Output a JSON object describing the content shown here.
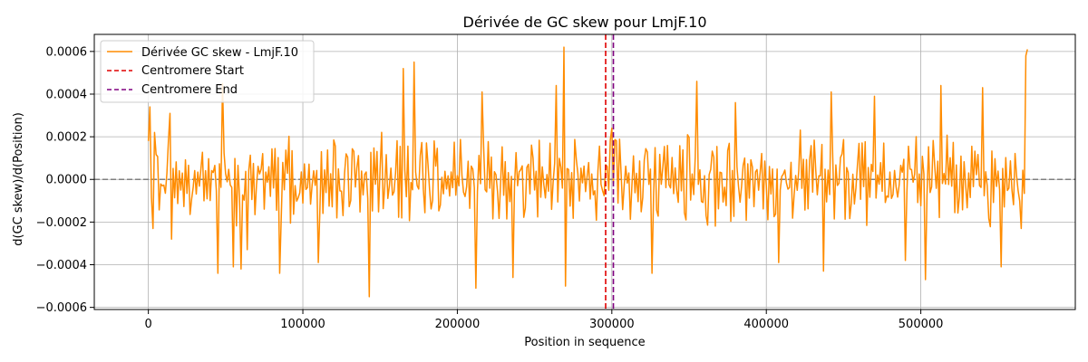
{
  "chart_data": {
    "type": "line",
    "title": "Dérivée de GC skew pour LmjF.10",
    "xlabel": "Position in sequence",
    "ylabel": "d(GC skew)/d(Position)",
    "xlim": [
      -35000,
      600000
    ],
    "ylim": [
      -0.00061,
      0.00068
    ],
    "x_ticks": [
      0,
      100000,
      200000,
      300000,
      400000,
      500000
    ],
    "x_tick_labels": [
      "0",
      "100000",
      "200000",
      "300000",
      "400000",
      "500000"
    ],
    "y_ticks": [
      -0.0006,
      -0.0004,
      -0.0002,
      0.0,
      0.0002,
      0.0004,
      0.0006
    ],
    "y_tick_labels": [
      "−0.0006",
      "−0.0004",
      "−0.0002",
      "0.0000",
      "0.0002",
      "0.0004",
      "0.0006"
    ],
    "grid": true,
    "legend": "upper-left",
    "series": [
      {
        "name": "Dérivée GC skew - LmjF.10",
        "color": "#ff8c00",
        "x_start": 0,
        "x_step": 1000,
        "peaks": [
          {
            "x": 0,
            "y": 0.00018
          },
          {
            "x": 1000,
            "y": 0.00034
          },
          {
            "x": 3000,
            "y": -0.00023
          },
          {
            "x": 4000,
            "y": 0.00022
          },
          {
            "x": 14000,
            "y": 0.00031
          },
          {
            "x": 15000,
            "y": -0.00028
          },
          {
            "x": 45000,
            "y": -0.00044
          },
          {
            "x": 48000,
            "y": 0.00045
          },
          {
            "x": 55000,
            "y": -0.00041
          },
          {
            "x": 60000,
            "y": -0.00042
          },
          {
            "x": 85000,
            "y": -0.00044
          },
          {
            "x": 110000,
            "y": -0.00039
          },
          {
            "x": 143000,
            "y": -0.00055
          },
          {
            "x": 165000,
            "y": 0.00052
          },
          {
            "x": 172000,
            "y": 0.00055
          },
          {
            "x": 212000,
            "y": -0.00051
          },
          {
            "x": 216000,
            "y": 0.00041
          },
          {
            "x": 236000,
            "y": -0.00046
          },
          {
            "x": 264000,
            "y": 0.00044
          },
          {
            "x": 269000,
            "y": 0.00062
          },
          {
            "x": 270000,
            "y": -0.0005
          },
          {
            "x": 300000,
            "y": 0.00024
          },
          {
            "x": 326000,
            "y": -0.00044
          },
          {
            "x": 355000,
            "y": 0.00046
          },
          {
            "x": 380000,
            "y": 0.00036
          },
          {
            "x": 408000,
            "y": -0.00039
          },
          {
            "x": 437000,
            "y": -0.00043
          },
          {
            "x": 442000,
            "y": 0.00041
          },
          {
            "x": 470000,
            "y": 0.00039
          },
          {
            "x": 490000,
            "y": -0.00038
          },
          {
            "x": 503000,
            "y": -0.00047
          },
          {
            "x": 513000,
            "y": 0.00044
          },
          {
            "x": 540000,
            "y": 0.00043
          },
          {
            "x": 552000,
            "y": -0.00041
          },
          {
            "x": 565000,
            "y": -0.00023
          },
          {
            "x": 568000,
            "y": 0.00058
          },
          {
            "x": 569000,
            "y": 0.00061
          }
        ],
        "typical_amplitude": 0.00016
      },
      {
        "name": "Centromere Start",
        "color": "#e00000",
        "type": "vline",
        "x": 296000
      },
      {
        "name": "Centromere End",
        "color": "#800080",
        "type": "vline",
        "x": 301000
      }
    ],
    "reference_line": {
      "y": 0,
      "color": "#808080"
    }
  }
}
